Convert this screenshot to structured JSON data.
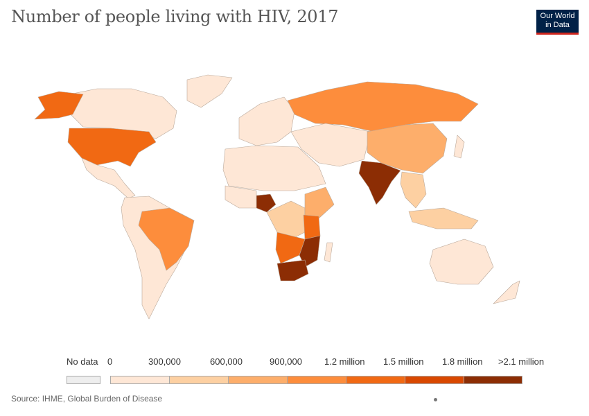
{
  "title": "Number of people living with HIV, 2017",
  "logo": {
    "line1": "Our World",
    "line2": "in Data"
  },
  "legend": {
    "no_data_label": "No data",
    "no_data_color": "#eeeeee",
    "labels": [
      "0",
      "300,000",
      "600,000",
      "900,000",
      "1.2 million",
      "1.5 million",
      "1.8 million",
      ">2.1 million"
    ],
    "colors": [
      "#fee7d6",
      "#fdd0a2",
      "#fdae6b",
      "#fd8d3c",
      "#f16913",
      "#d94801",
      "#8c2d04"
    ]
  },
  "source": "Source: IHME, Global Burden of Disease",
  "map_colors": {
    "lowest": "#fee7d6",
    "low": "#fdd0a2",
    "mid": "#fdae6b",
    "midhigh": "#fd8d3c",
    "high": "#f16913",
    "veryhigh": "#d94801",
    "top": "#8c2d04"
  }
}
